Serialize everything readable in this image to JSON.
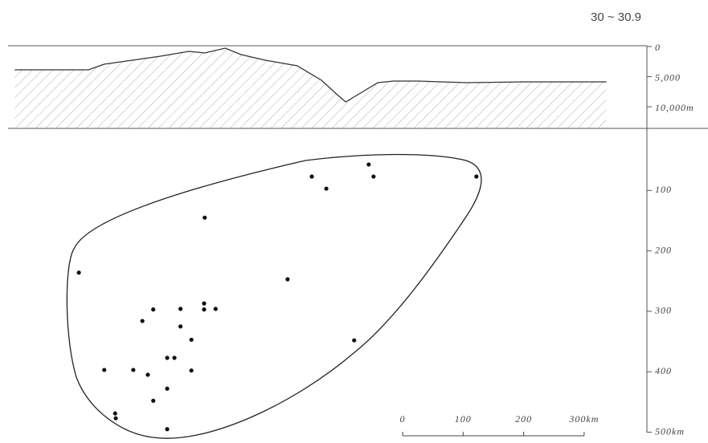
{
  "chart_data": [
    {
      "type": "line",
      "title": "30 ~ 30.9",
      "x": [
        11,
        133,
        159,
        252,
        299,
        325,
        359,
        385,
        425,
        478,
        518,
        544,
        558,
        578,
        611,
        637,
        677,
        757,
        850,
        916,
        989
      ],
      "values": [
        3870,
        3870,
        2930,
        1600,
        800,
        1070,
        270,
        1330,
        2270,
        3200,
        5600,
        8000,
        9200,
        8000,
        6000,
        5730,
        5730,
        6000,
        5870,
        5870,
        5870
      ],
      "xlim": [
        0,
        1055
      ],
      "ylim": [
        0,
        13600
      ],
      "yticks": [
        0,
        {
          "value": 5000,
          "label": "5,000"
        },
        {
          "value": 10000,
          "label": "10,000m"
        }
      ],
      "color": "#333"
    },
    {
      "type": "scatter",
      "x": [
        502,
        526,
        596,
        604,
        774,
        325,
        117,
        462,
        240,
        285,
        324,
        324,
        343,
        222,
        285,
        303,
        572,
        263,
        275,
        303,
        159,
        207,
        231,
        263,
        240,
        177,
        178,
        263
      ],
      "values": [
        77,
        97,
        57,
        77,
        77,
        145,
        236,
        247,
        297,
        296,
        287,
        297,
        296,
        316,
        325,
        347,
        348,
        377,
        377,
        398,
        397,
        397,
        405,
        428,
        448,
        469,
        477,
        495
      ],
      "xlim": [
        0,
        1055
      ],
      "ylim": [
        0,
        500
      ],
      "yticks": [
        100,
        200,
        300,
        400,
        {
          "value": 500,
          "label": "500km"
        }
      ],
      "scale_bar": [
        0,
        100,
        200,
        {
          "value": 300,
          "label": "300km"
        }
      ],
      "color": "#111"
    }
  ]
}
